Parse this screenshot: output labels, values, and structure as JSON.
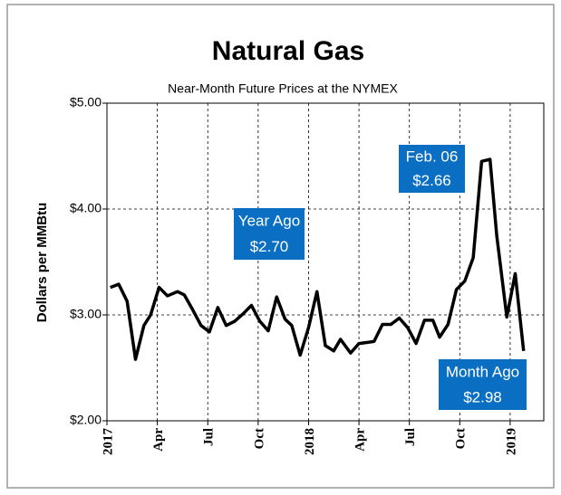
{
  "chart_data": {
    "type": "line",
    "title": "Natural Gas",
    "subtitle": "Near-Month  Future Prices at the NYMEX",
    "y_label": "Dollars per MMBtu",
    "xlim": [
      0,
      26
    ],
    "ylim": [
      2,
      5
    ],
    "xticks": [
      {
        "value": 0,
        "label": "2017"
      },
      {
        "value": 3,
        "label": "Apr"
      },
      {
        "value": 6,
        "label": "Jul"
      },
      {
        "value": 9,
        "label": "Oct"
      },
      {
        "value": 12,
        "label": "2018"
      },
      {
        "value": 15,
        "label": "Apr"
      },
      {
        "value": 18,
        "label": "Jul"
      },
      {
        "value": 21,
        "label": "Oct"
      },
      {
        "value": 24,
        "label": "2019"
      }
    ],
    "yticks": [
      {
        "value": 2,
        "label": "$2.00"
      },
      {
        "value": 3,
        "label": "$3.00"
      },
      {
        "value": 4,
        "label": "$4.00"
      },
      {
        "value": 5,
        "label": "$5.00"
      }
    ],
    "grid": true,
    "series": [
      {
        "color": "#000000",
        "x": [
          0.2,
          0.7,
          1.2,
          1.7,
          2.2,
          2.6,
          3.1,
          3.6,
          4.2,
          4.6,
          5.1,
          5.6,
          6.1,
          6.6,
          7.1,
          7.6,
          8.1,
          8.6,
          9.1,
          9.6,
          10.1,
          10.6,
          11.0,
          11.5,
          12.0,
          12.5,
          13.0,
          13.5,
          13.9,
          14.5,
          15.0,
          15.5,
          15.9,
          16.4,
          16.9,
          17.4,
          17.9,
          18.4,
          18.9,
          19.4,
          19.8,
          20.3,
          20.8,
          21.3,
          21.8,
          22.3,
          22.8,
          23.2,
          23.8,
          24.3,
          24.8
        ],
        "values": [
          3.26,
          3.29,
          3.13,
          2.58,
          2.9,
          3.0,
          3.26,
          3.18,
          3.22,
          3.19,
          3.05,
          2.9,
          2.84,
          3.07,
          2.9,
          2.94,
          3.01,
          3.09,
          2.94,
          2.85,
          3.17,
          2.96,
          2.9,
          2.62,
          2.88,
          3.22,
          2.71,
          2.66,
          2.77,
          2.64,
          2.73,
          2.74,
          2.75,
          2.91,
          2.91,
          2.97,
          2.88,
          2.73,
          2.95,
          2.95,
          2.79,
          2.91,
          3.24,
          3.32,
          3.54,
          4.45,
          4.47,
          3.75,
          2.98,
          3.39,
          2.66
        ]
      }
    ],
    "annotations": [
      {
        "lines": [
          "Feb. 06",
          "$2.66"
        ]
      },
      {
        "lines": [
          "Year Ago",
          "$2.70"
        ]
      },
      {
        "lines": [
          "Month Ago",
          "$2.98"
        ]
      }
    ]
  }
}
